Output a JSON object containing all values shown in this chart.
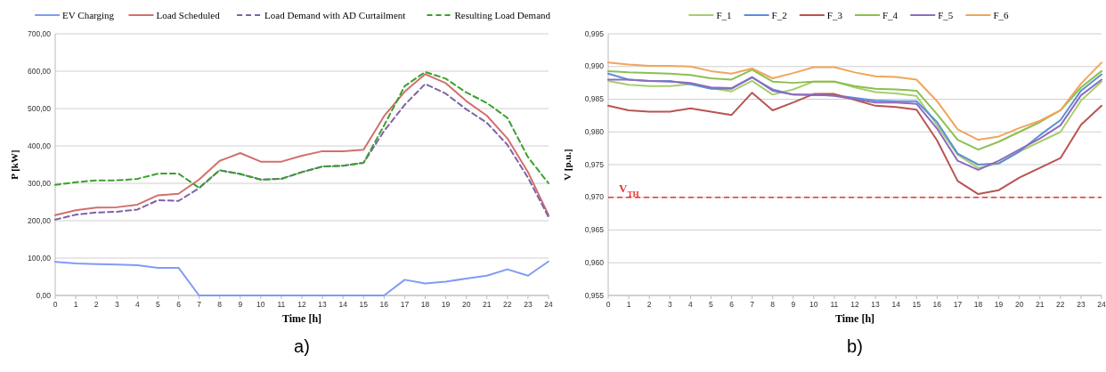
{
  "chart_data": [
    {
      "type": "line",
      "xlabel": "Time [h]",
      "ylabel": "P [kW]",
      "annotations": [
        "a)"
      ],
      "legend": "top",
      "grid": "y",
      "marker": "none",
      "x": [
        0,
        1,
        2,
        3,
        4,
        5,
        6,
        7,
        8,
        9,
        10,
        11,
        12,
        13,
        14,
        15,
        16,
        17,
        18,
        19,
        20,
        21,
        22,
        23,
        24
      ],
      "xlim": [
        0,
        24
      ],
      "xticks": [
        0,
        1,
        2,
        3,
        4,
        5,
        6,
        7,
        8,
        9,
        10,
        11,
        12,
        13,
        14,
        15,
        16,
        17,
        18,
        19,
        20,
        21,
        22,
        23,
        24
      ],
      "ylim": [
        0,
        700
      ],
      "yticks": [
        {
          "value": 0,
          "label": "0,00"
        },
        {
          "value": 100,
          "label": "100,00"
        },
        {
          "value": 200,
          "label": "200,00"
        },
        {
          "value": 300,
          "label": "300,00"
        },
        {
          "value": 400,
          "label": "400,00"
        },
        {
          "value": 500,
          "label": "500,00"
        },
        {
          "value": 600,
          "label": "600,00"
        },
        {
          "value": 700,
          "label": "700,00"
        }
      ],
      "series": [
        {
          "name": "EV Charging",
          "color": "#7f9cf5",
          "line_style": "solid",
          "values": [
            90,
            86,
            84,
            83,
            81,
            74,
            74,
            0,
            0,
            0,
            0,
            0,
            0,
            0,
            0,
            0,
            0,
            42,
            32,
            37,
            45,
            53,
            70,
            53,
            91
          ]
        },
        {
          "name": "Load Scheduled",
          "color": "#d0706c",
          "line_style": "solid",
          "values": [
            215,
            228,
            235,
            236,
            243,
            268,
            272,
            310,
            360,
            381,
            358,
            358,
            374,
            386,
            386,
            390,
            480,
            545,
            592,
            568,
            520,
            481,
            420,
            330,
            215
          ]
        },
        {
          "name": "Load Demand with AD Curtailment",
          "color": "#7e62a6",
          "line_style": "dashed",
          "values": [
            203,
            216,
            222,
            224,
            230,
            255,
            253,
            287,
            335,
            325,
            310,
            312,
            330,
            345,
            347,
            355,
            440,
            510,
            566,
            540,
            498,
            462,
            403,
            315,
            210
          ]
        },
        {
          "name": "Resulting Load Demand",
          "color": "#3aa02c",
          "line_style": "dashed",
          "values": [
            296,
            303,
            308,
            308,
            312,
            326,
            326,
            288,
            335,
            325,
            310,
            312,
            330,
            345,
            347,
            355,
            455,
            560,
            598,
            580,
            543,
            515,
            475,
            370,
            300
          ]
        }
      ]
    },
    {
      "type": "line",
      "xlabel": "Time [h]",
      "ylabel": "V [p.u.]",
      "annotations": [
        "b)"
      ],
      "legend": "top",
      "grid": "y",
      "marker": "none",
      "x": [
        0,
        1,
        2,
        3,
        4,
        5,
        6,
        7,
        8,
        9,
        10,
        11,
        12,
        13,
        14,
        15,
        16,
        17,
        18,
        19,
        20,
        21,
        22,
        23,
        24
      ],
      "xlim": [
        0,
        24
      ],
      "xticks": [
        0,
        1,
        2,
        3,
        4,
        5,
        6,
        7,
        8,
        9,
        10,
        11,
        12,
        13,
        14,
        15,
        16,
        17,
        18,
        19,
        20,
        21,
        22,
        23,
        24
      ],
      "ylim": [
        0.955,
        0.995
      ],
      "yticks": [
        {
          "value": 0.955,
          "label": "0,955"
        },
        {
          "value": 0.96,
          "label": "0,960"
        },
        {
          "value": 0.965,
          "label": "0,965"
        },
        {
          "value": 0.97,
          "label": "0,970"
        },
        {
          "value": 0.975,
          "label": "0,975"
        },
        {
          "value": 0.98,
          "label": "0,980"
        },
        {
          "value": 0.985,
          "label": "0,985"
        },
        {
          "value": 0.99,
          "label": "0,990"
        },
        {
          "value": 0.995,
          "label": "0,995"
        }
      ],
      "ref_lines": [
        {
          "axis": "y",
          "value": 0.97,
          "label": "V$_{TH}$",
          "color": "#ee3333",
          "line_style": "dashed"
        }
      ],
      "series": [
        {
          "name": "F_1",
          "color": "#a6cf6a",
          "values": [
            0.9878,
            0.9872,
            0.987,
            0.987,
            0.9873,
            0.9867,
            0.9862,
            0.9878,
            0.9857,
            0.9865,
            0.9877,
            0.9877,
            0.9868,
            0.9861,
            0.9859,
            0.9855,
            0.981,
            0.9765,
            0.9745,
            0.9752,
            0.977,
            0.9785,
            0.98,
            0.9848,
            0.9877
          ]
        },
        {
          "name": "F_2",
          "color": "#5b8fd6",
          "values": [
            0.9889,
            0.988,
            0.9878,
            0.9878,
            0.9873,
            0.9866,
            0.9866,
            0.9883,
            0.9865,
            0.9857,
            0.9856,
            0.9856,
            0.9852,
            0.9848,
            0.9847,
            0.9847,
            0.9815,
            0.9767,
            0.975,
            0.9752,
            0.977,
            0.9795,
            0.9818,
            0.9863,
            0.9888
          ]
        },
        {
          "name": "F_3",
          "color": "#b85450",
          "values": [
            0.984,
            0.9833,
            0.9831,
            0.9831,
            0.9836,
            0.9831,
            0.9826,
            0.986,
            0.9833,
            0.9845,
            0.9858,
            0.9858,
            0.9849,
            0.984,
            0.9838,
            0.9834,
            0.9787,
            0.9725,
            0.9705,
            0.9711,
            0.973,
            0.9745,
            0.976,
            0.9811,
            0.984
          ]
        },
        {
          "name": "F_4",
          "color": "#8cbf50",
          "values": [
            0.9893,
            0.9891,
            0.989,
            0.9889,
            0.9887,
            0.9882,
            0.988,
            0.9895,
            0.9877,
            0.9875,
            0.9877,
            0.9877,
            0.987,
            0.9866,
            0.9865,
            0.9863,
            0.9827,
            0.9788,
            0.9773,
            0.9785,
            0.98,
            0.9815,
            0.9833,
            0.9868,
            0.9893
          ]
        },
        {
          "name": "F_5",
          "color": "#8e6bbd",
          "values": [
            0.988,
            0.988,
            0.9878,
            0.9877,
            0.9875,
            0.9868,
            0.9867,
            0.9884,
            0.9863,
            0.9857,
            0.9857,
            0.9855,
            0.985,
            0.9845,
            0.9845,
            0.9843,
            0.9805,
            0.9756,
            0.9742,
            0.9756,
            0.9773,
            0.979,
            0.981,
            0.9856,
            0.988
          ]
        },
        {
          "name": "F_6",
          "color": "#f0a55a",
          "values": [
            0.9906,
            0.9903,
            0.9901,
            0.9901,
            0.99,
            0.9893,
            0.9889,
            0.9897,
            0.9882,
            0.989,
            0.9899,
            0.9899,
            0.9891,
            0.9885,
            0.9884,
            0.988,
            0.9847,
            0.9804,
            0.9788,
            0.9793,
            0.9806,
            0.9817,
            0.9833,
            0.9874,
            0.9906
          ]
        }
      ]
    }
  ]
}
